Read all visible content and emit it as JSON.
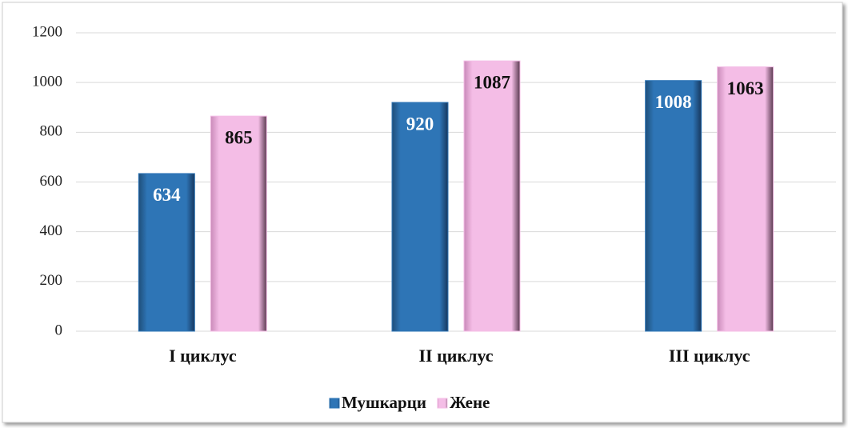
{
  "chart_data": {
    "type": "bar",
    "categories": [
      "I циклус",
      "II циклус",
      "III циклус"
    ],
    "series": [
      {
        "name": "Мушкарци",
        "color": "#2e75b6",
        "values": [
          634,
          920,
          1008
        ]
      },
      {
        "name": "Жене",
        "color": "#f4bde6",
        "values": [
          865,
          1087,
          1063
        ]
      }
    ],
    "ylim": [
      0,
      1200
    ],
    "yticks": [
      0,
      200,
      400,
      600,
      800,
      1000,
      1200
    ],
    "grid": true,
    "legend": "bottom",
    "data_labels": true
  }
}
